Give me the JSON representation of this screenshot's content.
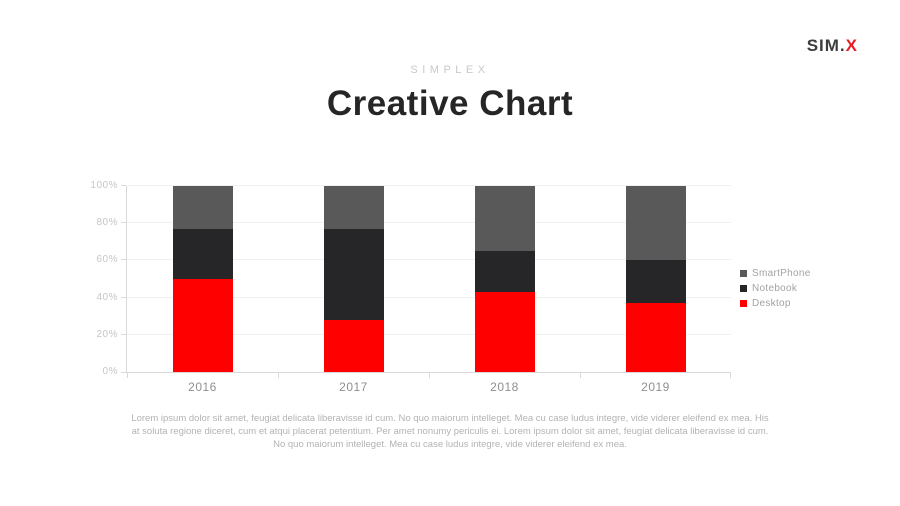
{
  "theme": {
    "accent_red": "#fe0000",
    "logo_red": "#ed1c24",
    "title_color": "#262626",
    "eyebrow_color": "#c9c9c9",
    "axis_line": "#d9d9d9",
    "grid_line": "#f1f1f1",
    "ytick_color": "#c6c6c6",
    "xtick_color": "#8f8f8f",
    "legend_text": "#a3a3a3",
    "footer_text": "#b3b3b3"
  },
  "logo": {
    "prefix": "SIM.",
    "accent": "X"
  },
  "header": {
    "eyebrow": "SIMPLEX",
    "title": "Creative Chart"
  },
  "chart_data": {
    "type": "bar",
    "stacked": true,
    "percent": true,
    "title": "Creative Chart",
    "xlabel": "",
    "ylabel": "",
    "categories": [
      "2016",
      "2017",
      "2018",
      "2019"
    ],
    "series": [
      {
        "name": "Desktop",
        "color": "#fe0000",
        "values": [
          50,
          28,
          43,
          37
        ]
      },
      {
        "name": "Notebook",
        "color": "#262628",
        "values": [
          27,
          49,
          22,
          23
        ]
      },
      {
        "name": "SmartPhone",
        "color": "#595959",
        "values": [
          23,
          23,
          35,
          40
        ]
      }
    ],
    "legend": [
      "SmartPhone",
      "Notebook",
      "Desktop"
    ],
    "legend_position": "right",
    "ylim": [
      0,
      100
    ],
    "ytick_step": 20,
    "ytick_labels": [
      "0%",
      "20%",
      "40%",
      "60%",
      "80%",
      "100%"
    ],
    "grid": true
  },
  "footer": {
    "body": "Lorem ipsum dolor sit amet, feugiat delicata liberavisse id cum. No quo maiorum intelleget. Mea cu case ludus integre, vide viderer eleifend ex mea. His at soluta regione diceret, cum et atqui placerat petentium. Per amet nonumy periculis ei. Lorem ipsum dolor sit amet, feugiat delicata liberavisse id cum. No quo maiorum intelleget. Mea cu case ludus integre, vide viderer eleifend ex mea."
  }
}
